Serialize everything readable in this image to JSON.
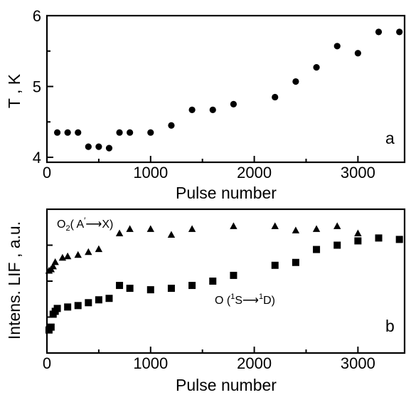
{
  "chart_data": [
    {
      "type": "scatter",
      "panel": "a",
      "xlabel": "Pulse number",
      "ylabel": "T , K",
      "xlim": [
        0,
        3450
      ],
      "ylim": [
        3.93,
        6.0
      ],
      "xticks": [
        0,
        1000,
        2000,
        3000
      ],
      "yticks": [
        4,
        5,
        6
      ],
      "series": [
        {
          "marker": "circle",
          "points": [
            [
              100,
              4.35
            ],
            [
              200,
              4.35
            ],
            [
              300,
              4.35
            ],
            [
              400,
              4.15
            ],
            [
              500,
              4.15
            ],
            [
              600,
              4.13
            ],
            [
              700,
              4.35
            ],
            [
              800,
              4.35
            ],
            [
              1000,
              4.35
            ],
            [
              1200,
              4.45
            ],
            [
              1400,
              4.67
            ],
            [
              1600,
              4.67
            ],
            [
              1800,
              4.75
            ],
            [
              2200,
              4.85
            ],
            [
              2400,
              5.07
            ],
            [
              2600,
              5.27
            ],
            [
              2800,
              5.57
            ],
            [
              3000,
              5.47
            ],
            [
              3200,
              5.77
            ],
            [
              3400,
              5.77
            ]
          ]
        }
      ]
    },
    {
      "type": "scatter",
      "panel": "b",
      "xlabel": "Pulse number",
      "ylabel": "Intens. LIF , a.u.",
      "xlim": [
        0,
        3450
      ],
      "ylim": [
        0,
        1
      ],
      "xticks": [
        0,
        1000,
        2000,
        3000
      ],
      "series": [
        {
          "marker": "triangle",
          "annotation": {
            "prefix": "O",
            "sub": "2",
            "mid": "( A",
            "sup": "′",
            "arrow": "⟶",
            "suffix": "X)"
          },
          "points": [
            [
              20,
              0.57
            ],
            [
              40,
              0.58
            ],
            [
              60,
              0.6
            ],
            [
              80,
              0.63
            ],
            [
              150,
              0.66
            ],
            [
              200,
              0.67
            ],
            [
              300,
              0.68
            ],
            [
              400,
              0.7
            ],
            [
              500,
              0.72
            ],
            [
              700,
              0.83
            ],
            [
              800,
              0.86
            ],
            [
              1000,
              0.86
            ],
            [
              1200,
              0.82
            ],
            [
              1400,
              0.86
            ],
            [
              1800,
              0.88
            ],
            [
              2200,
              0.88
            ],
            [
              2400,
              0.85
            ],
            [
              2600,
              0.86
            ],
            [
              2800,
              0.88
            ],
            [
              3000,
              0.83
            ]
          ]
        },
        {
          "marker": "square",
          "annotation": {
            "prefix": "O (",
            "sup1": "1",
            "mid": "S",
            "arrow": "⟶",
            "sup2": "1",
            "suffix": "D)"
          },
          "points": [
            [
              20,
              0.16
            ],
            [
              40,
              0.18
            ],
            [
              60,
              0.27
            ],
            [
              80,
              0.29
            ],
            [
              100,
              0.31
            ],
            [
              200,
              0.32
            ],
            [
              300,
              0.33
            ],
            [
              400,
              0.35
            ],
            [
              500,
              0.37
            ],
            [
              600,
              0.38
            ],
            [
              700,
              0.47
            ],
            [
              800,
              0.45
            ],
            [
              1000,
              0.44
            ],
            [
              1200,
              0.45
            ],
            [
              1400,
              0.47
            ],
            [
              1600,
              0.5
            ],
            [
              1800,
              0.54
            ],
            [
              2200,
              0.61
            ],
            [
              2400,
              0.63
            ],
            [
              2600,
              0.72
            ],
            [
              2800,
              0.75
            ],
            [
              3000,
              0.78
            ],
            [
              3200,
              0.8
            ],
            [
              3400,
              0.79
            ]
          ]
        }
      ]
    }
  ]
}
